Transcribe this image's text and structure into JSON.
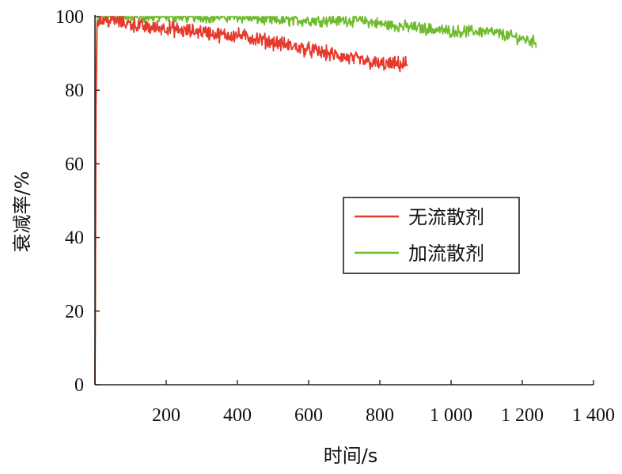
{
  "chart_data": {
    "type": "line",
    "xlabel": "时间/s",
    "ylabel": "衰减率/%",
    "xlim": [
      0,
      1400
    ],
    "ylim": [
      0,
      100
    ],
    "x_ticks": [
      200,
      400,
      600,
      800,
      1000,
      1200,
      1400
    ],
    "x_tick_labels": [
      "200",
      "400",
      "600",
      "800",
      "1 000",
      "1 200",
      "1 400"
    ],
    "y_ticks": [
      0,
      20,
      40,
      60,
      80,
      100
    ],
    "y_tick_labels": [
      "0",
      "20",
      "40",
      "60",
      "80",
      "100"
    ],
    "grid": false,
    "legend_position": "right-middle",
    "series": [
      {
        "name": "无流散剂",
        "color": "#e53a2c",
        "x": [
          0,
          3,
          6,
          10,
          50,
          100,
          150,
          200,
          250,
          300,
          350,
          400,
          450,
          500,
          550,
          600,
          650,
          700,
          750,
          800,
          850,
          880
        ],
        "y": [
          0,
          75,
          98,
          99,
          99,
          98,
          97,
          97,
          96,
          96,
          95,
          95,
          94,
          93,
          92,
          91,
          90,
          89,
          88,
          87,
          87,
          87
        ]
      },
      {
        "name": "加流散剂",
        "color": "#6fbb2e",
        "x": [
          0,
          3,
          6,
          10,
          100,
          200,
          300,
          400,
          500,
          600,
          700,
          750,
          800,
          900,
          1000,
          1100,
          1200,
          1240
        ],
        "y": [
          0,
          85,
          99,
          100,
          100,
          100,
          100,
          100,
          99,
          99,
          99,
          99,
          98,
          97,
          96,
          96,
          94,
          93
        ]
      }
    ]
  }
}
